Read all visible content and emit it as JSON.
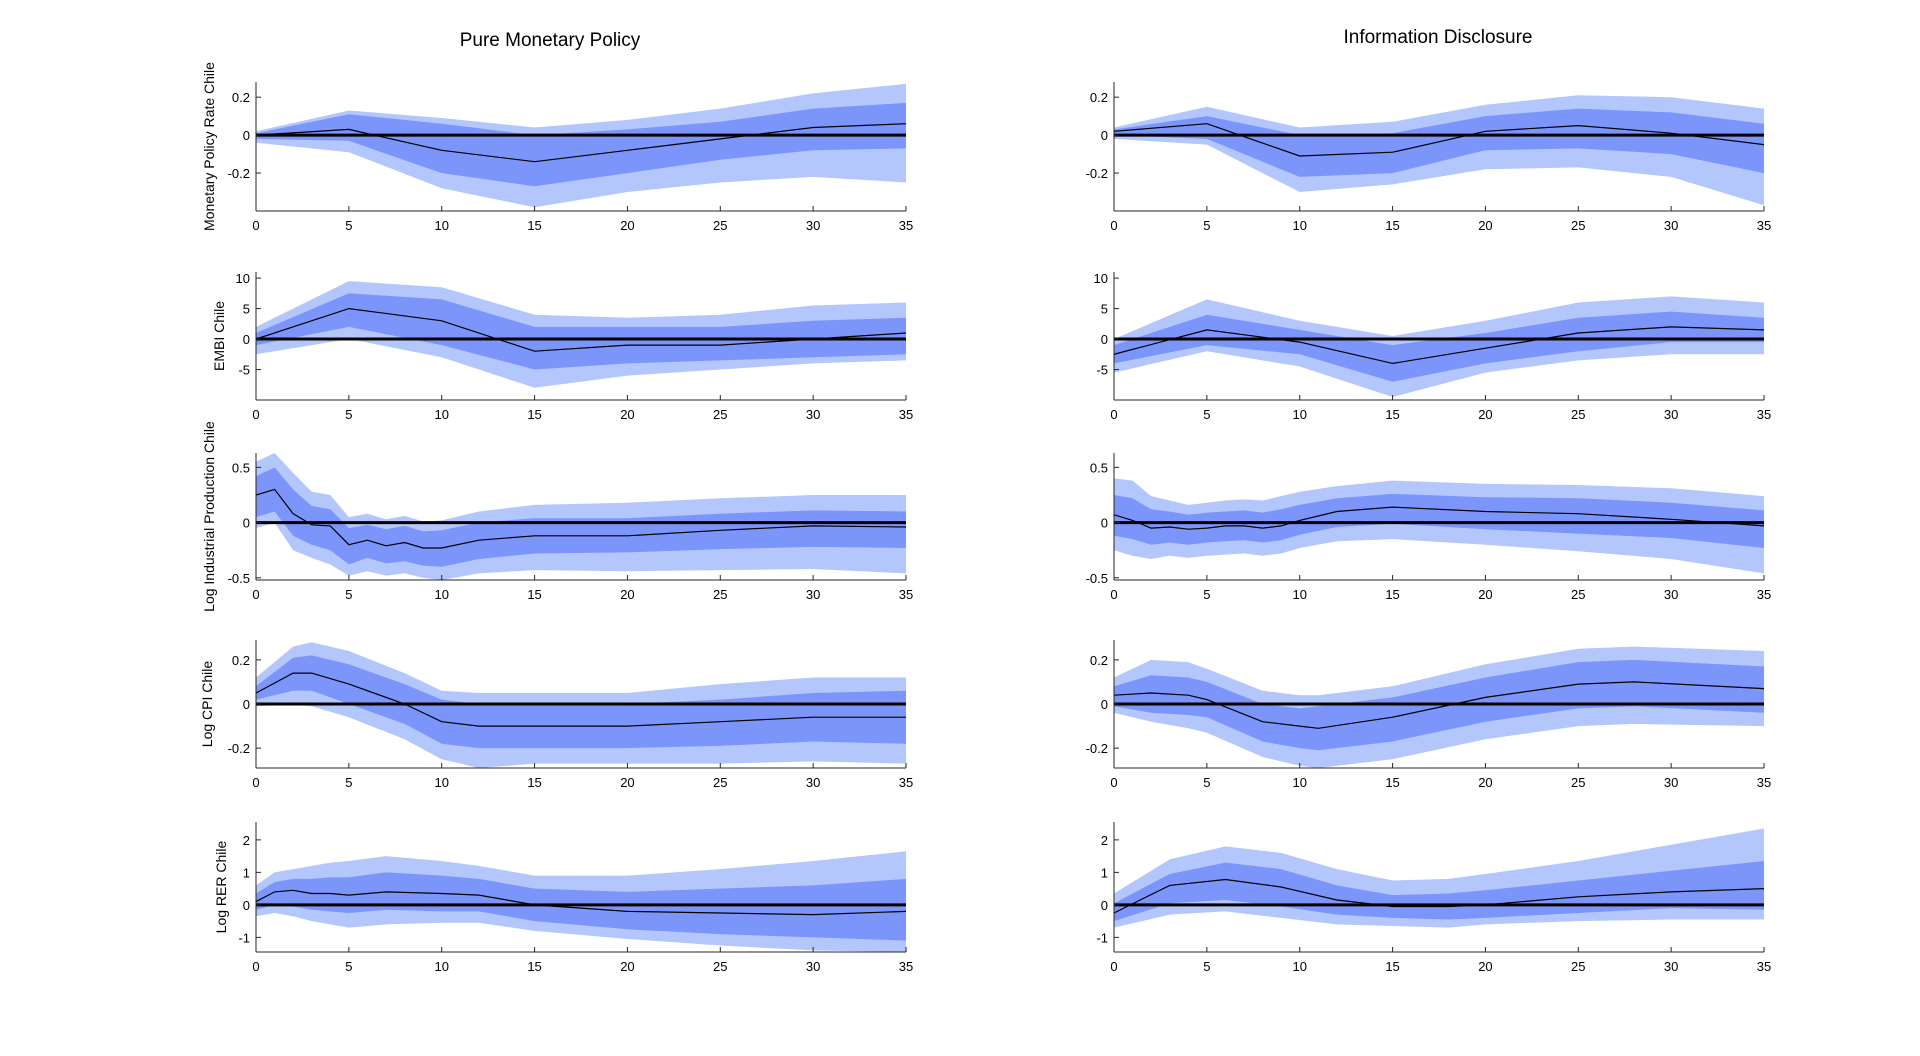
{
  "figure": {
    "columns": [
      "Pure Monetary Policy",
      "Information Disclosure"
    ],
    "colors": {
      "outer_band": "#b3c7fd",
      "inner_band": "#7c95fa",
      "median": "#000000",
      "zero": "#000000",
      "axis": "#262626",
      "text": "#000000"
    }
  },
  "chart_data": [
    {
      "type": "area",
      "panel": "pmp-mpr",
      "title": "Pure Monetary Policy",
      "ylabel": "Monetary Policy Rate Chile",
      "xlabel": "",
      "xlim": [
        0,
        35
      ],
      "ylim": [
        -0.4,
        0.28
      ],
      "xticks": [
        0,
        5,
        10,
        15,
        20,
        25,
        30,
        35
      ],
      "xtick_labels": [
        "0",
        "5",
        "10",
        "15",
        "20",
        "25",
        "30",
        "35"
      ],
      "yticks": [
        0.2,
        0,
        -0.2
      ],
      "ytick_labels": [
        "0.2",
        "0",
        "-0.2"
      ],
      "x": [
        0,
        5,
        10,
        15,
        20,
        25,
        30,
        35
      ],
      "median": [
        0,
        0.03,
        -0.08,
        -0.14,
        -0.08,
        -0.02,
        0.04,
        0.06
      ],
      "inner_upper": [
        0.01,
        0.11,
        0.06,
        0,
        0.03,
        0.07,
        0.14,
        0.17
      ],
      "inner_lower": [
        -0.02,
        -0.03,
        -0.2,
        -0.27,
        -0.2,
        -0.13,
        -0.08,
        -0.07
      ],
      "outer_upper": [
        0.02,
        0.13,
        0.09,
        0.04,
        0.08,
        0.14,
        0.22,
        0.27
      ],
      "outer_lower": [
        -0.04,
        -0.09,
        -0.28,
        -0.38,
        -0.3,
        -0.25,
        -0.22,
        -0.25
      ]
    },
    {
      "type": "area",
      "panel": "id-mpr",
      "title": "Information Disclosure",
      "ylabel": "",
      "xlabel": "",
      "xlim": [
        0,
        35
      ],
      "ylim": [
        -0.4,
        0.28
      ],
      "xticks": [
        0,
        5,
        10,
        15,
        20,
        25,
        30,
        35
      ],
      "xtick_labels": [
        "0",
        "5",
        "10",
        "15",
        "20",
        "25",
        "30",
        "35"
      ],
      "yticks": [
        0.2,
        0,
        -0.2
      ],
      "ytick_labels": [
        "0.2",
        "0",
        "-0.2"
      ],
      "x": [
        0,
        5,
        10,
        15,
        20,
        25,
        30,
        35
      ],
      "median": [
        0.02,
        0.06,
        -0.11,
        -0.09,
        0.02,
        0.05,
        0.01,
        -0.05
      ],
      "inner_upper": [
        0.03,
        0.1,
        0,
        0.01,
        0.1,
        0.14,
        0.12,
        0.06
      ],
      "inner_lower": [
        0,
        -0.02,
        -0.22,
        -0.2,
        -0.08,
        -0.07,
        -0.1,
        -0.2
      ],
      "outer_upper": [
        0.04,
        0.15,
        0.04,
        0.07,
        0.16,
        0.21,
        0.2,
        0.14
      ],
      "outer_lower": [
        -0.02,
        -0.05,
        -0.3,
        -0.26,
        -0.18,
        -0.17,
        -0.22,
        -0.37
      ]
    },
    {
      "type": "area",
      "panel": "pmp-embi",
      "title": "",
      "ylabel": "EMBI Chile",
      "xlabel": "",
      "xlim": [
        0,
        35
      ],
      "ylim": [
        -10,
        11
      ],
      "xticks": [
        0,
        5,
        10,
        15,
        20,
        25,
        30,
        35
      ],
      "xtick_labels": [
        "0",
        "5",
        "10",
        "15",
        "20",
        "25",
        "30",
        "35"
      ],
      "yticks": [
        10,
        5,
        0,
        -5
      ],
      "ytick_labels": [
        "10",
        "5",
        "0",
        "-5"
      ],
      "x": [
        0,
        5,
        10,
        15,
        20,
        25,
        30,
        35
      ],
      "median": [
        0,
        5,
        3,
        -2,
        -1,
        -1,
        0,
        1
      ],
      "inner_upper": [
        1,
        7.5,
        6.5,
        2,
        2,
        2,
        3,
        3.5
      ],
      "inner_lower": [
        -1,
        2,
        -1,
        -5,
        -4,
        -3.5,
        -3,
        -2.5
      ],
      "outer_upper": [
        2,
        9.5,
        8.5,
        4,
        3.5,
        4,
        5.5,
        6
      ],
      "outer_lower": [
        -2.5,
        0,
        -3,
        -8,
        -6,
        -5,
        -4,
        -3.5
      ]
    },
    {
      "type": "area",
      "panel": "id-embi",
      "title": "",
      "ylabel": "",
      "xlabel": "",
      "xlim": [
        0,
        35
      ],
      "ylim": [
        -10,
        11
      ],
      "xticks": [
        0,
        5,
        10,
        15,
        20,
        25,
        30,
        35
      ],
      "xtick_labels": [
        "0",
        "5",
        "10",
        "15",
        "20",
        "25",
        "30",
        "35"
      ],
      "yticks": [
        10,
        5,
        0,
        -5
      ],
      "ytick_labels": [
        "10",
        "5",
        "0",
        "-5"
      ],
      "x": [
        0,
        5,
        10,
        15,
        20,
        25,
        30,
        35
      ],
      "median": [
        -2.5,
        1.5,
        -0.5,
        -4,
        -1.5,
        1,
        2,
        1.5
      ],
      "inner_upper": [
        -1,
        4,
        1.5,
        -1,
        1,
        3.5,
        4.5,
        3.5
      ],
      "inner_lower": [
        -4,
        -1,
        -2.5,
        -7,
        -4,
        -2,
        -0.5,
        -0.5
      ],
      "outer_upper": [
        0,
        6.5,
        3,
        0.5,
        3,
        6,
        7,
        6
      ],
      "outer_lower": [
        -5.5,
        -2,
        -4.5,
        -9.5,
        -5.5,
        -3.5,
        -2.5,
        -2.5
      ]
    },
    {
      "type": "area",
      "panel": "pmp-ip",
      "title": "",
      "ylabel": "Log Industrial Production Chile",
      "xlabel": "",
      "xlim": [
        0,
        35
      ],
      "ylim": [
        -0.52,
        0.63
      ],
      "xticks": [
        0,
        5,
        10,
        15,
        20,
        25,
        30,
        35
      ],
      "xtick_labels": [
        "0",
        "5",
        "10",
        "15",
        "20",
        "25",
        "30",
        "35"
      ],
      "yticks": [
        0.5,
        0,
        -0.5
      ],
      "ytick_labels": [
        "0.5",
        "0",
        "-0.5"
      ],
      "x": [
        0,
        1,
        2,
        3,
        4,
        5,
        6,
        7,
        8,
        9,
        10,
        12,
        15,
        20,
        25,
        30,
        35
      ],
      "median": [
        0.25,
        0.3,
        0.08,
        -0.02,
        -0.03,
        -0.2,
        -0.16,
        -0.21,
        -0.18,
        -0.23,
        -0.23,
        -0.16,
        -0.12,
        -0.12,
        -0.07,
        -0.03,
        -0.04
      ],
      "inner_upper": [
        0.42,
        0.5,
        0.3,
        0.15,
        0.12,
        -0.05,
        -0.02,
        -0.06,
        -0.03,
        -0.08,
        -0.07,
        0,
        0.04,
        0.04,
        0.08,
        0.11,
        0.1
      ],
      "inner_lower": [
        0.05,
        0.1,
        -0.12,
        -0.2,
        -0.25,
        -0.38,
        -0.32,
        -0.37,
        -0.35,
        -0.39,
        -0.4,
        -0.33,
        -0.28,
        -0.27,
        -0.24,
        -0.22,
        -0.23
      ],
      "outer_upper": [
        0.55,
        0.63,
        0.45,
        0.28,
        0.25,
        0.05,
        0.08,
        0.03,
        0.06,
        0.01,
        0.02,
        0.1,
        0.16,
        0.18,
        0.22,
        0.25,
        0.25
      ],
      "outer_lower": [
        -0.05,
        0,
        -0.25,
        -0.32,
        -0.38,
        -0.48,
        -0.44,
        -0.48,
        -0.46,
        -0.5,
        -0.52,
        -0.46,
        -0.43,
        -0.44,
        -0.43,
        -0.42,
        -0.46
      ]
    },
    {
      "type": "area",
      "panel": "id-ip",
      "title": "",
      "ylabel": "",
      "xlabel": "",
      "xlim": [
        0,
        35
      ],
      "ylim": [
        -0.52,
        0.63
      ],
      "xticks": [
        0,
        5,
        10,
        15,
        20,
        25,
        30,
        35
      ],
      "xtick_labels": [
        "0",
        "5",
        "10",
        "15",
        "20",
        "25",
        "30",
        "35"
      ],
      "yticks": [
        0.5,
        0,
        -0.5
      ],
      "ytick_labels": [
        "0.5",
        "0",
        "-0.5"
      ],
      "x": [
        0,
        1,
        2,
        3,
        4,
        5,
        6,
        7,
        8,
        9,
        10,
        12,
        15,
        20,
        25,
        30,
        35
      ],
      "median": [
        0.07,
        0.02,
        -0.05,
        -0.04,
        -0.06,
        -0.05,
        -0.03,
        -0.03,
        -0.05,
        -0.03,
        0.02,
        0.1,
        0.14,
        0.1,
        0.08,
        0.03,
        -0.03
      ],
      "inner_upper": [
        0.25,
        0.22,
        0.12,
        0.1,
        0.07,
        0.09,
        0.1,
        0.11,
        0.09,
        0.12,
        0.16,
        0.22,
        0.26,
        0.23,
        0.22,
        0.18,
        0.11
      ],
      "inner_lower": [
        -0.12,
        -0.15,
        -0.2,
        -0.18,
        -0.2,
        -0.18,
        -0.17,
        -0.16,
        -0.18,
        -0.16,
        -0.11,
        -0.04,
        -0.01,
        -0.06,
        -0.1,
        -0.14,
        -0.23
      ],
      "outer_upper": [
        0.4,
        0.38,
        0.24,
        0.2,
        0.16,
        0.18,
        0.2,
        0.21,
        0.2,
        0.24,
        0.28,
        0.33,
        0.38,
        0.35,
        0.34,
        0.31,
        0.24
      ],
      "outer_lower": [
        -0.25,
        -0.3,
        -0.33,
        -0.3,
        -0.32,
        -0.3,
        -0.29,
        -0.28,
        -0.3,
        -0.28,
        -0.23,
        -0.17,
        -0.15,
        -0.2,
        -0.26,
        -0.33,
        -0.46
      ]
    },
    {
      "type": "area",
      "panel": "pmp-cpi",
      "title": "",
      "ylabel": "Log CPI Chile",
      "xlabel": "",
      "xlim": [
        0,
        35
      ],
      "ylim": [
        -0.29,
        0.29
      ],
      "xticks": [
        0,
        5,
        10,
        15,
        20,
        25,
        30,
        35
      ],
      "xtick_labels": [
        "0",
        "5",
        "10",
        "15",
        "20",
        "25",
        "30",
        "35"
      ],
      "yticks": [
        0.2,
        0,
        -0.2
      ],
      "ytick_labels": [
        "0.2",
        "0",
        "-0.2"
      ],
      "x": [
        0,
        2,
        3,
        5,
        8,
        10,
        12,
        15,
        20,
        25,
        30,
        35
      ],
      "median": [
        0.05,
        0.14,
        0.14,
        0.09,
        0,
        -0.08,
        -0.1,
        -0.1,
        -0.1,
        -0.08,
        -0.06,
        -0.06
      ],
      "inner_upper": [
        0.08,
        0.21,
        0.22,
        0.18,
        0.09,
        0.02,
        0,
        0,
        0,
        0.02,
        0.05,
        0.06
      ],
      "inner_lower": [
        0.02,
        0.06,
        0.06,
        0,
        -0.09,
        -0.18,
        -0.2,
        -0.2,
        -0.2,
        -0.19,
        -0.17,
        -0.18
      ],
      "outer_upper": [
        0.12,
        0.26,
        0.28,
        0.24,
        0.14,
        0.06,
        0.05,
        0.05,
        0.05,
        0.09,
        0.12,
        0.12
      ],
      "outer_lower": [
        -0.01,
        0,
        -0.01,
        -0.06,
        -0.16,
        -0.25,
        -0.29,
        -0.27,
        -0.27,
        -0.27,
        -0.26,
        -0.27
      ]
    },
    {
      "type": "area",
      "panel": "id-cpi",
      "title": "",
      "ylabel": "",
      "xlabel": "",
      "xlim": [
        0,
        35
      ],
      "ylim": [
        -0.29,
        0.29
      ],
      "xticks": [
        0,
        5,
        10,
        15,
        20,
        25,
        30,
        35
      ],
      "xtick_labels": [
        "0",
        "5",
        "10",
        "15",
        "20",
        "25",
        "30",
        "35"
      ],
      "yticks": [
        0.2,
        0,
        -0.2
      ],
      "ytick_labels": [
        "0.2",
        "0",
        "-0.2"
      ],
      "x": [
        0,
        2,
        4,
        5,
        8,
        10,
        11,
        15,
        20,
        25,
        28,
        35
      ],
      "median": [
        0.04,
        0.05,
        0.04,
        0.02,
        -0.08,
        -0.1,
        -0.11,
        -0.06,
        0.03,
        0.09,
        0.1,
        0.07
      ],
      "inner_upper": [
        0.08,
        0.13,
        0.12,
        0.1,
        0,
        -0.02,
        -0.01,
        0.03,
        0.12,
        0.19,
        0.2,
        0.17
      ],
      "inner_lower": [
        -0.01,
        -0.04,
        -0.05,
        -0.06,
        -0.17,
        -0.2,
        -0.21,
        -0.17,
        -0.08,
        -0.02,
        -0.01,
        -0.04
      ],
      "outer_upper": [
        0.12,
        0.2,
        0.19,
        0.16,
        0.06,
        0.04,
        0.04,
        0.08,
        0.18,
        0.25,
        0.26,
        0.24
      ],
      "outer_lower": [
        -0.04,
        -0.08,
        -0.11,
        -0.13,
        -0.24,
        -0.28,
        -0.29,
        -0.25,
        -0.16,
        -0.1,
        -0.09,
        -0.1
      ]
    },
    {
      "type": "area",
      "panel": "pmp-rer",
      "title": "",
      "ylabel": "Log RER Chile",
      "xlabel": "",
      "xlim": [
        0,
        35
      ],
      "ylim": [
        -1.45,
        2.55
      ],
      "xticks": [
        0,
        5,
        10,
        15,
        20,
        25,
        30,
        35
      ],
      "xtick_labels": [
        "0",
        "5",
        "10",
        "15",
        "20",
        "25",
        "30",
        "35"
      ],
      "yticks": [
        2,
        1,
        0,
        -1
      ],
      "ytick_labels": [
        "2",
        "1",
        "0",
        "-1"
      ],
      "x": [
        0,
        1,
        2,
        3,
        4,
        5,
        7,
        10,
        12,
        15,
        20,
        25,
        30,
        35
      ],
      "median": [
        0.1,
        0.4,
        0.45,
        0.35,
        0.35,
        0.3,
        0.4,
        0.35,
        0.3,
        0,
        -0.2,
        -0.25,
        -0.3,
        -0.2
      ],
      "inner_upper": [
        0.35,
        0.7,
        0.8,
        0.8,
        0.85,
        0.85,
        1,
        0.9,
        0.8,
        0.5,
        0.4,
        0.5,
        0.6,
        0.8
      ],
      "inner_lower": [
        -0.15,
        0,
        -0.05,
        -0.15,
        -0.2,
        -0.25,
        -0.15,
        -0.2,
        -0.2,
        -0.5,
        -0.75,
        -0.9,
        -1,
        -1.1
      ],
      "outer_upper": [
        0.6,
        1,
        1.1,
        1.2,
        1.3,
        1.35,
        1.5,
        1.35,
        1.2,
        0.9,
        0.9,
        1.1,
        1.35,
        1.65
      ],
      "outer_lower": [
        -0.35,
        -0.25,
        -0.35,
        -0.5,
        -0.6,
        -0.7,
        -0.6,
        -0.55,
        -0.55,
        -0.8,
        -1.05,
        -1.25,
        -1.4,
        -1.45
      ]
    },
    {
      "type": "area",
      "panel": "id-rer",
      "title": "",
      "ylabel": "",
      "xlabel": "",
      "xlim": [
        0,
        35
      ],
      "ylim": [
        -1.45,
        2.55
      ],
      "xticks": [
        0,
        5,
        10,
        15,
        20,
        25,
        30,
        35
      ],
      "xtick_labels": [
        "0",
        "5",
        "10",
        "15",
        "20",
        "25",
        "30",
        "35"
      ],
      "yticks": [
        2,
        1,
        0,
        -1
      ],
      "ytick_labels": [
        "2",
        "1",
        "0",
        "-1"
      ],
      "x": [
        0,
        3,
        6,
        9,
        12,
        15,
        18,
        20,
        25,
        30,
        35
      ],
      "median": [
        -0.25,
        0.6,
        0.78,
        0.55,
        0.15,
        -0.05,
        -0.05,
        0,
        0.25,
        0.4,
        0.5
      ],
      "inner_upper": [
        0.05,
        0.95,
        1.3,
        1.1,
        0.6,
        0.3,
        0.35,
        0.45,
        0.75,
        1.05,
        1.35
      ],
      "inner_lower": [
        -0.5,
        0.05,
        0.15,
        -0.05,
        -0.3,
        -0.4,
        -0.45,
        -0.4,
        -0.25,
        -0.1,
        -0.15
      ],
      "outer_upper": [
        0.35,
        1.4,
        1.8,
        1.6,
        1.1,
        0.75,
        0.8,
        0.95,
        1.35,
        1.85,
        2.35
      ],
      "outer_lower": [
        -0.7,
        -0.3,
        -0.2,
        -0.4,
        -0.6,
        -0.65,
        -0.7,
        -0.6,
        -0.5,
        -0.45,
        -0.45
      ]
    }
  ]
}
